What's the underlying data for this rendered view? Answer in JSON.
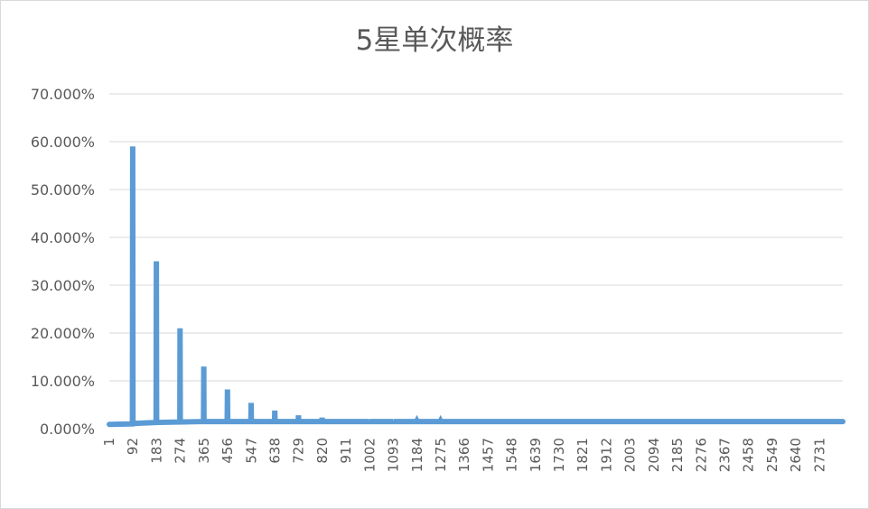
{
  "chart_data": {
    "type": "line",
    "title": "5星单次概率",
    "xlabel": "",
    "ylabel": "",
    "ylim": [
      0,
      70
    ],
    "y_ticks": [
      0,
      10,
      20,
      30,
      40,
      50,
      60,
      70
    ],
    "y_tick_labels": [
      "0.000%",
      "10.000%",
      "20.000%",
      "30.000%",
      "40.000%",
      "50.000%",
      "60.000%",
      "70.000%"
    ],
    "x_tick_labels": [
      "1",
      "92",
      "183",
      "274",
      "365",
      "456",
      "547",
      "638",
      "729",
      "820",
      "911",
      "1002",
      "1093",
      "1184",
      "1275",
      "1366",
      "1457",
      "1548",
      "1639",
      "1730",
      "1821",
      "1912",
      "2003",
      "2094",
      "2185",
      "2276",
      "2367",
      "2458",
      "2549",
      "2640",
      "2731"
    ],
    "x_range": [
      1,
      2820
    ],
    "grid": true,
    "legend": "none",
    "series_color": "#5b9bd5",
    "series": [
      {
        "points": [
          [
            1,
            0.9
          ],
          [
            90,
            1.0
          ],
          [
            91,
            59.0
          ],
          [
            92,
            1.1
          ],
          [
            181,
            1.3
          ],
          [
            182,
            35.0
          ],
          [
            183,
            1.3
          ],
          [
            272,
            1.4
          ],
          [
            273,
            21.0
          ],
          [
            274,
            1.4
          ],
          [
            363,
            1.5
          ],
          [
            364,
            13.0
          ],
          [
            365,
            1.5
          ],
          [
            454,
            1.5
          ],
          [
            455,
            8.2
          ],
          [
            456,
            1.5
          ],
          [
            545,
            1.5
          ],
          [
            546,
            5.4
          ],
          [
            547,
            1.5
          ],
          [
            636,
            1.5
          ],
          [
            637,
            3.8
          ],
          [
            638,
            1.5
          ],
          [
            727,
            1.5
          ],
          [
            728,
            2.8
          ],
          [
            729,
            1.5
          ],
          [
            818,
            1.5
          ],
          [
            819,
            2.3
          ],
          [
            820,
            1.5
          ],
          [
            909,
            1.5
          ],
          [
            910,
            2.0
          ],
          [
            911,
            1.5
          ],
          [
            1000,
            1.5
          ],
          [
            1001,
            1.8
          ],
          [
            1002,
            1.5
          ],
          [
            1091,
            1.5
          ],
          [
            1092,
            1.7
          ],
          [
            1093,
            1.5
          ],
          [
            1182,
            1.5
          ],
          [
            1183,
            1.6
          ],
          [
            1184,
            1.5
          ],
          [
            1273,
            1.5
          ],
          [
            1274,
            1.6
          ],
          [
            1275,
            1.5
          ],
          [
            2820,
            1.5
          ]
        ]
      }
    ]
  }
}
